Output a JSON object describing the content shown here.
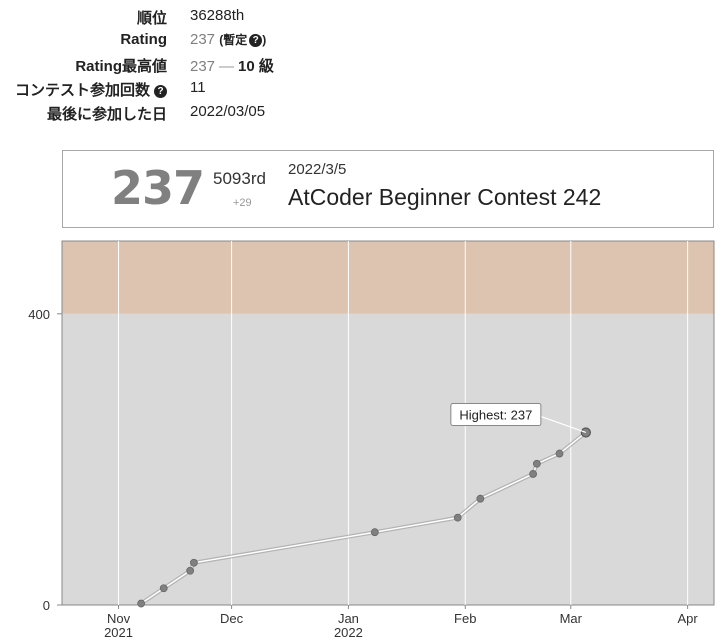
{
  "profile": {
    "rank": {
      "label": "順位",
      "value": "36288th"
    },
    "rating": {
      "label": "Rating",
      "value": "237",
      "note": "(暫定",
      "note_close": ")"
    },
    "highest": {
      "label": "Rating最高値",
      "value": "237",
      "dash": "—",
      "kyu": "10 級"
    },
    "contests": {
      "label": "コンテスト参加回数",
      "value": "11"
    },
    "last": {
      "label": "最後に参加した日",
      "value": "2022/03/05"
    },
    "help_icon": "question-circle-icon"
  },
  "card": {
    "rating": "237",
    "rank": "5093rd",
    "diff": "+29",
    "date": "2022/3/5",
    "contest": "AtCoder Beginner Contest 242"
  },
  "colors": {
    "brown_band": "#dcc4b0",
    "grey_band": "#d9d9d9",
    "line": "#ffffff",
    "point": "#808080",
    "rating_grey": "#808080"
  },
  "chart_data": {
    "type": "line",
    "xlim": [
      "2021-10-17",
      "2022-04-08"
    ],
    "ylim": [
      0,
      500
    ],
    "y_ticks": [
      0,
      400
    ],
    "x_ticks": [
      {
        "date": "2021-11-01",
        "label": "Nov",
        "year": "2021"
      },
      {
        "date": "2021-12-01",
        "label": "Dec",
        "year": ""
      },
      {
        "date": "2022-01-01",
        "label": "Jan",
        "year": "2022"
      },
      {
        "date": "2022-02-01",
        "label": "Feb",
        "year": ""
      },
      {
        "date": "2022-03-01",
        "label": "Mar",
        "year": ""
      },
      {
        "date": "2022-04-01",
        "label": "Apr",
        "year": ""
      }
    ],
    "bands": [
      {
        "from": 0,
        "to": 400,
        "color": "#d9d9d9"
      },
      {
        "from": 400,
        "to": 500,
        "color": "#dcc4b0"
      }
    ],
    "series": [
      {
        "x": [
          "2021-11-07",
          "2021-11-13",
          "2021-11-20",
          "2021-11-21",
          "2022-01-08",
          "2022-01-30",
          "2022-02-05",
          "2022-02-19",
          "2022-02-20",
          "2022-02-26",
          "2022-03-05"
        ],
        "values": [
          2,
          23,
          47,
          58,
          100,
          120,
          146,
          180,
          194,
          208,
          237
        ]
      }
    ],
    "annotation": {
      "label": "Highest: 237",
      "index": 10
    }
  }
}
